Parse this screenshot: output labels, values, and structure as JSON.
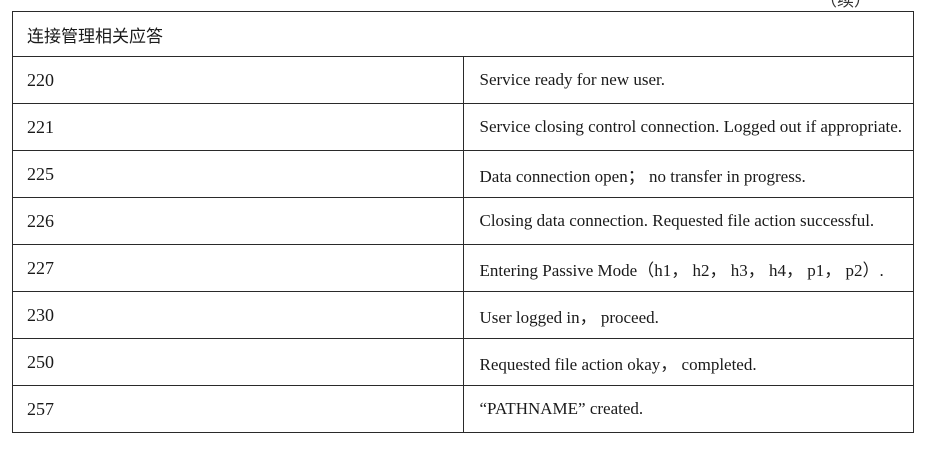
{
  "continued_mark": "（续）",
  "section_title": "连接管理相关应答",
  "rows": [
    {
      "code": "220",
      "description": "Service ready for new user."
    },
    {
      "code": "221",
      "description": "Service closing control connection. Logged out if appropriate."
    },
    {
      "code": "225",
      "description": "Data connection open； no transfer in progress."
    },
    {
      "code": "226",
      "description": "Closing data connection. Requested file action successful."
    },
    {
      "code": "227",
      "description": "Entering Passive Mode（h1， h2， h3， h4， p1， p2）."
    },
    {
      "code": "230",
      "description": "User logged in， proceed."
    },
    {
      "code": "250",
      "description": "Requested file action okay， completed."
    },
    {
      "code": "257",
      "description": "“PATHNAME” created."
    }
  ]
}
